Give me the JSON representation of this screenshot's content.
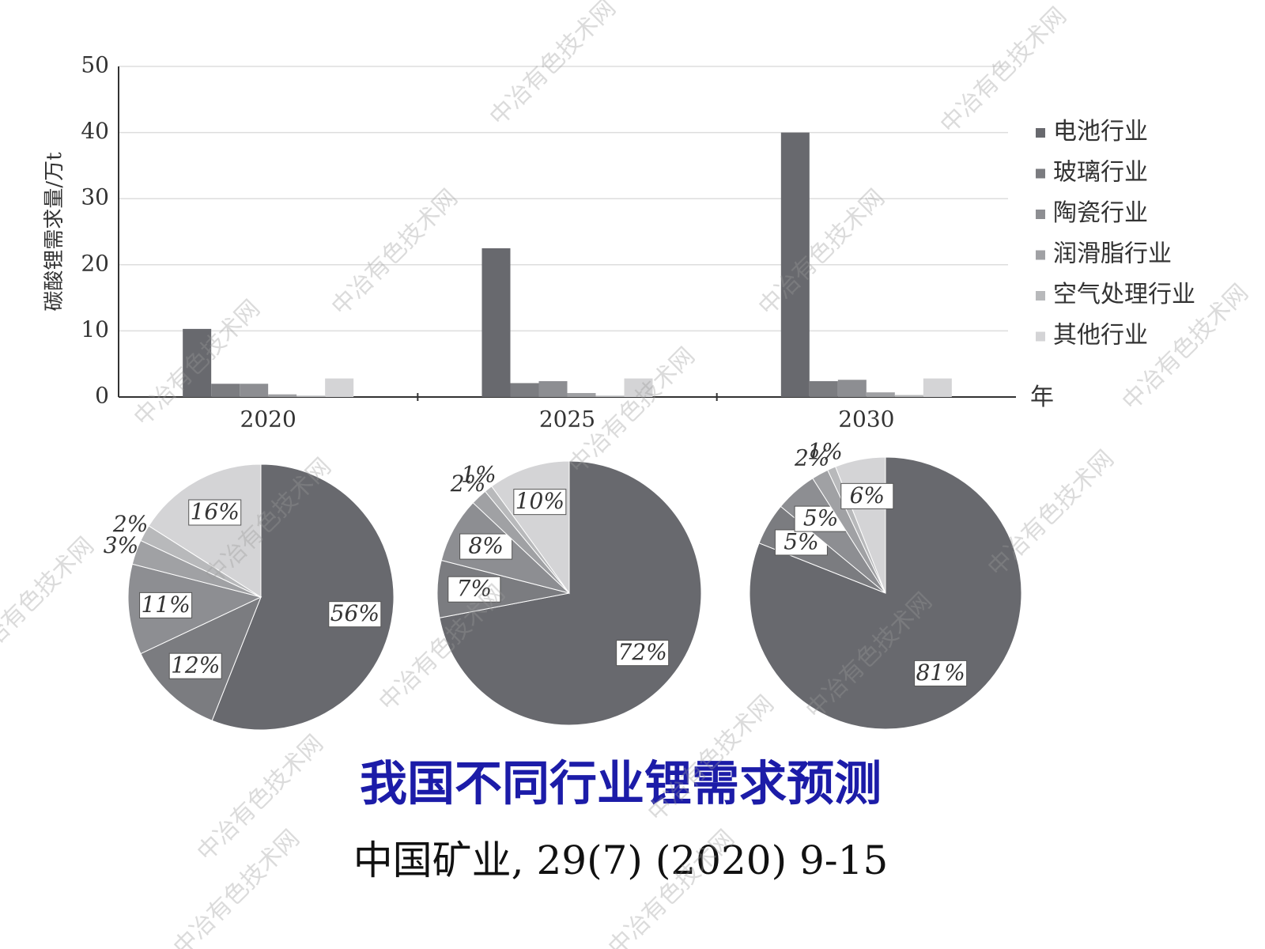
{
  "chart_data": [
    {
      "type": "bar",
      "y_label": "碳酸锂需求量/万t",
      "x_label": "年",
      "categories": [
        "2020",
        "2025",
        "2030"
      ],
      "series": [
        {
          "name": "电池行业",
          "color": "#68696e",
          "values": [
            10.3,
            22.5,
            40
          ]
        },
        {
          "name": "玻璃行业",
          "color": "#7b7c80",
          "values": [
            2,
            2.1,
            2.4
          ]
        },
        {
          "name": "陶瓷行业",
          "color": "#8d8e92",
          "values": [
            2,
            2.4,
            2.6
          ]
        },
        {
          "name": "润滑脂行业",
          "color": "#a0a1a4",
          "values": [
            0.4,
            0.6,
            0.7
          ]
        },
        {
          "name": "空气处理行业",
          "color": "#b8b9bb",
          "values": [
            0.2,
            0.2,
            0.3
          ]
        },
        {
          "name": "其他行业",
          "color": "#d4d4d6",
          "values": [
            2.8,
            2.8,
            2.8
          ]
        }
      ],
      "ylim": [
        0,
        50
      ],
      "yticks": [
        0,
        10,
        20,
        30,
        40,
        50
      ],
      "grid": true,
      "legend": "right"
    },
    {
      "type": "pie",
      "values": [
        56,
        12,
        11,
        3,
        2,
        16
      ],
      "value_labels": [
        "56%",
        "12%",
        "11%",
        "3%",
        "2%",
        "16%"
      ],
      "colors": [
        "#68696e",
        "#7b7c80",
        "#8d8e92",
        "#a0a1a4",
        "#b8b9bb",
        "#d4d4d6"
      ]
    },
    {
      "type": "pie",
      "values": [
        72,
        7,
        8,
        2,
        1,
        10
      ],
      "value_labels": [
        "72%",
        "7%",
        "8%",
        "2%",
        "1%",
        "10%"
      ],
      "colors": [
        "#68696e",
        "#7b7c80",
        "#8d8e92",
        "#a0a1a4",
        "#b8b9bb",
        "#d4d4d6"
      ]
    },
    {
      "type": "pie",
      "values": [
        81,
        5,
        5,
        2,
        1,
        6
      ],
      "value_labels": [
        "81%",
        "5%",
        "5%",
        "2%",
        "1%",
        "6%"
      ],
      "colors": [
        "#68696e",
        "#7b7c80",
        "#8d8e92",
        "#a0a1a4",
        "#b8b9bb",
        "#d4d4d6"
      ]
    }
  ],
  "caption": {
    "title": "我国不同行业锂需求预测",
    "source": "中国矿业, 29(7) (2020) 9-15"
  },
  "watermark": "中冶有色技术网"
}
